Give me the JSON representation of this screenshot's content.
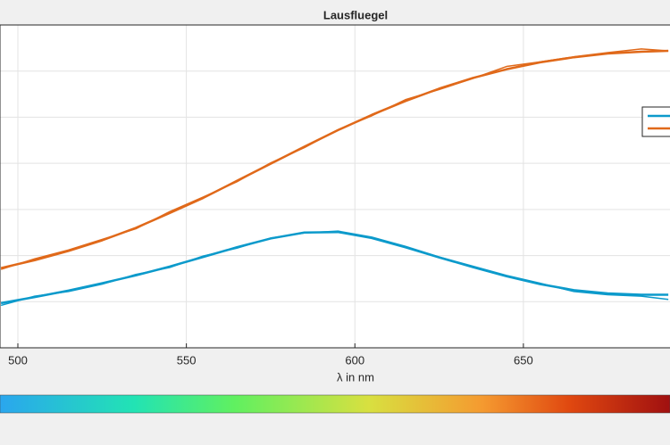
{
  "chart_data": {
    "type": "line",
    "title": "Lausfluegel",
    "x_label": "λ in nm",
    "x": [
      495,
      505,
      515,
      525,
      535,
      545,
      555,
      565,
      575,
      585,
      595,
      605,
      615,
      625,
      635,
      645,
      655,
      665,
      675,
      685,
      693
    ],
    "series": [
      {
        "color": "#0c9acb",
        "width": 1.5,
        "values": [
          0.92,
          1.12,
          1.22,
          1.38,
          1.59,
          1.74,
          1.99,
          2.16,
          2.38,
          2.49,
          2.53,
          2.4,
          2.2,
          1.97,
          1.77,
          1.57,
          1.4,
          1.22,
          1.15,
          1.12,
          1.05
        ]
      },
      {
        "color": "#0c9acb",
        "width": 2.5,
        "values": [
          0.97,
          1.1,
          1.24,
          1.4,
          1.57,
          1.76,
          1.97,
          2.18,
          2.37,
          2.5,
          2.51,
          2.38,
          2.18,
          1.96,
          1.75,
          1.55,
          1.38,
          1.25,
          1.18,
          1.15,
          1.15
        ]
      },
      {
        "color": "#e0691a",
        "width": 1.5,
        "values": [
          1.7,
          1.93,
          2.12,
          2.35,
          2.58,
          2.95,
          3.27,
          3.6,
          4.01,
          4.34,
          4.73,
          5.03,
          5.38,
          5.6,
          5.84,
          6.1,
          6.2,
          6.31,
          6.4,
          6.48,
          6.44
        ]
      },
      {
        "color": "#e0691a",
        "width": 2.5,
        "values": [
          1.73,
          1.9,
          2.1,
          2.33,
          2.6,
          2.92,
          3.25,
          3.62,
          3.99,
          4.36,
          4.72,
          5.05,
          5.35,
          5.62,
          5.85,
          6.04,
          6.19,
          6.3,
          6.38,
          6.42,
          6.44
        ]
      }
    ],
    "xlim": [
      494.7,
      693.5
    ],
    "xticks": [
      500,
      550,
      600,
      650
    ],
    "ylim": [
      0,
      7
    ],
    "yticks": [
      1,
      2,
      3,
      4,
      5,
      6
    ],
    "grid": true
  }
}
